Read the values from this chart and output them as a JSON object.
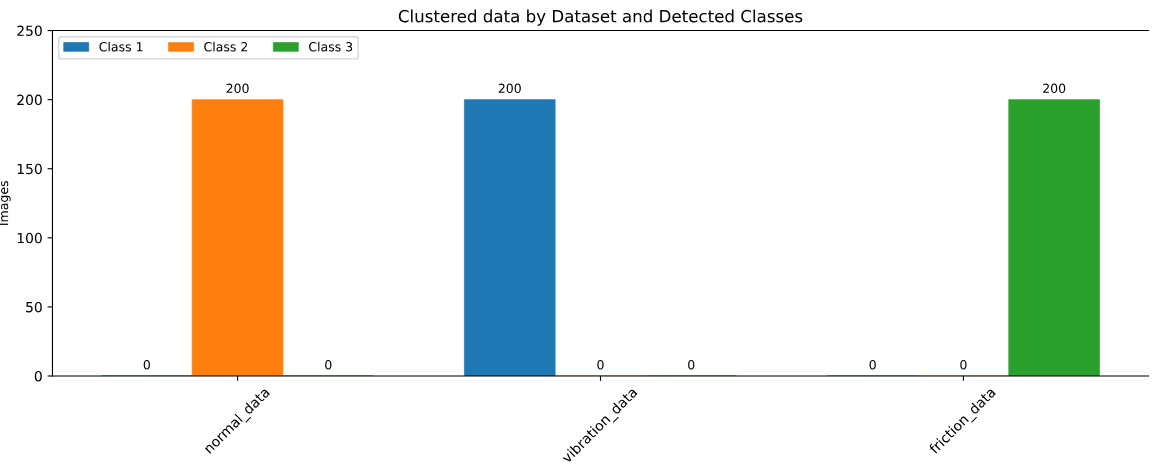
{
  "chart_data": {
    "type": "bar",
    "title": "Clustered data by Dataset and Detected Classes",
    "ylabel": "Images",
    "categories": [
      "normal_data",
      "vibration_data",
      "friction_data"
    ],
    "series": [
      {
        "name": "Class 1",
        "color": "#1f77b4",
        "values": [
          0,
          200,
          0
        ]
      },
      {
        "name": "Class 2",
        "color": "#ff7f0e",
        "values": [
          200,
          0,
          0
        ]
      },
      {
        "name": "Class 3",
        "color": "#2ca02c",
        "values": [
          0,
          0,
          200
        ]
      }
    ],
    "ylim": [
      0,
      250
    ],
    "yticks": [
      0,
      50,
      100,
      150,
      200,
      250
    ],
    "data_labels": true,
    "legend": "top left",
    "grid": false
  }
}
